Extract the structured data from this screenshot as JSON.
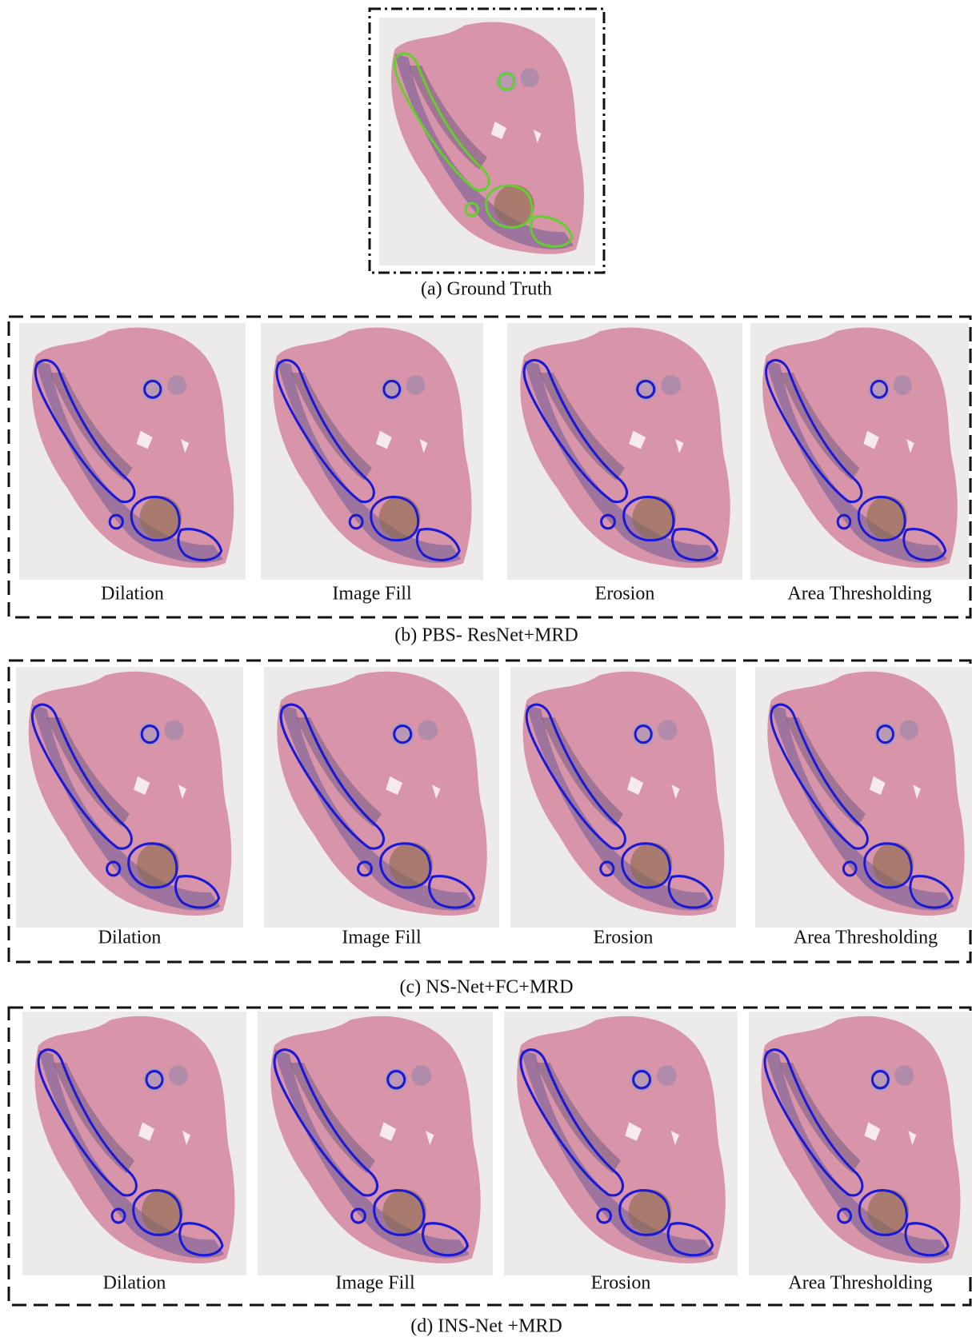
{
  "panels": [
    {
      "caption": "(a) Ground Truth"
    },
    {
      "caption": "(b) PBS- ResNet+MRD",
      "labels": [
        "Dilation",
        "Image Fill",
        "Erosion",
        "Area Thresholding"
      ]
    },
    {
      "caption": "(c) NS-Net+FC+MRD",
      "labels": [
        "Dilation",
        "Image Fill",
        "Erosion",
        "Area Thresholding"
      ]
    },
    {
      "caption": "(d) INS-Net +MRD",
      "labels": [
        "Dilation",
        "Image Fill",
        "Erosion",
        "Area Thresholding"
      ]
    }
  ]
}
